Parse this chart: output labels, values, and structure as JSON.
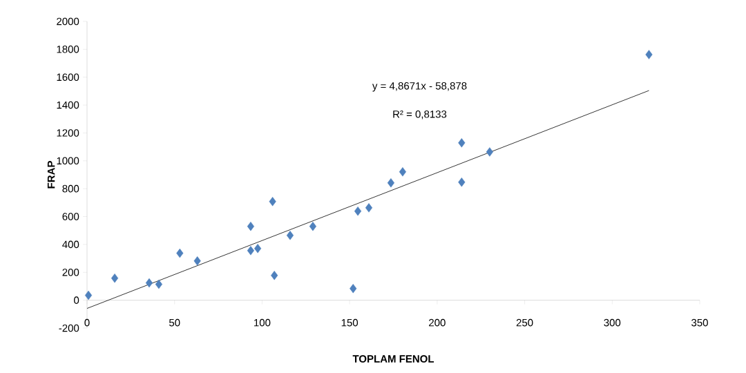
{
  "chart_data": {
    "type": "scatter",
    "xlabel": "TOPLAM FENOL",
    "ylabel": "FRAP",
    "annotations": [
      "y = 4,8671x - 58,878",
      "R² = 0,8133"
    ],
    "series": [
      {
        "color": "#4f81bd",
        "marker": "diamond",
        "x": [
          0.8,
          15.8,
          35.5,
          41,
          53,
          63,
          93.5,
          93.5,
          97.5,
          106,
          107,
          116,
          129,
          152,
          154.7,
          161,
          173.6,
          180.3,
          214,
          214,
          230,
          321
        ],
        "values": [
          35,
          158,
          124,
          114,
          337,
          282,
          530,
          356,
          371,
          708,
          178,
          465,
          530,
          84,
          639,
          663,
          842,
          921,
          1129,
          847,
          1064,
          1762
        ]
      },
      {
        "type": "line",
        "color": "#000000",
        "marker": "none",
        "x": [
          0,
          321
        ],
        "values": [
          -59,
          1504
        ]
      }
    ],
    "xlim": [
      0,
      350
    ],
    "xticks": [
      0,
      50,
      100,
      150,
      200,
      250,
      300,
      350
    ],
    "ylim": [
      -200,
      2000
    ],
    "yticks": [
      -200,
      0,
      200,
      400,
      600,
      800,
      1000,
      1200,
      1400,
      1600,
      1800,
      2000
    ],
    "line_style": "solid"
  }
}
